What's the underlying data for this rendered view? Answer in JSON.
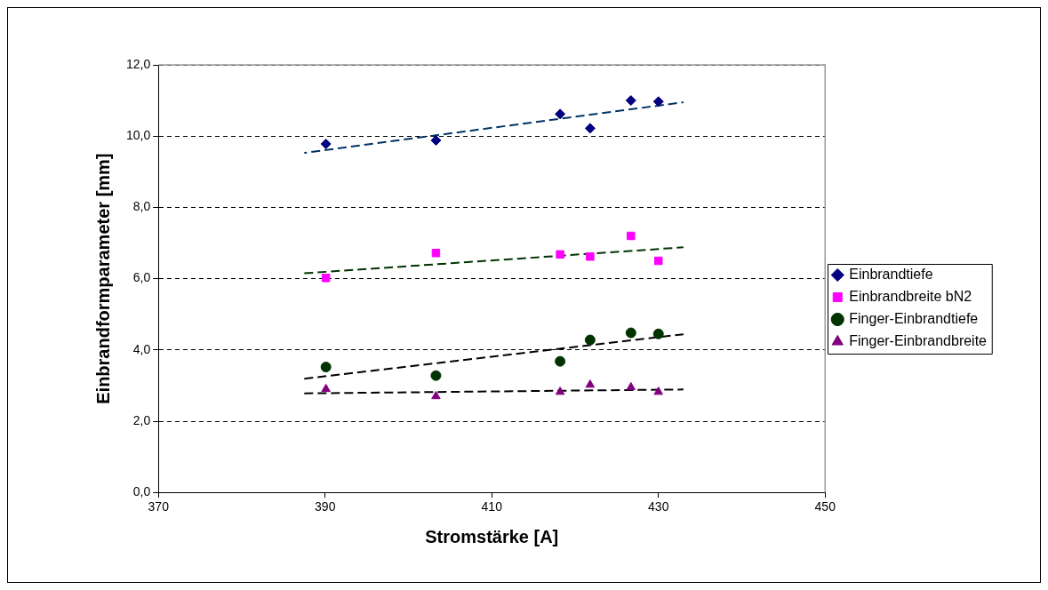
{
  "chart_data": {
    "type": "scatter",
    "xlabel": "Stromstärke [A]",
    "ylabel": "Einbrandformparameter [mm]",
    "xlim": [
      370,
      450
    ],
    "xticks": [
      370,
      390,
      410,
      430,
      450
    ],
    "ylim": [
      0,
      12
    ],
    "yticks": [
      {
        "value": 0,
        "label": "0,0"
      },
      {
        "value": 2,
        "label": "2,0"
      },
      {
        "value": 4,
        "label": "4,0"
      },
      {
        "value": 6,
        "label": "6,0"
      },
      {
        "value": 8,
        "label": "8,0"
      },
      {
        "value": 10,
        "label": "10,0"
      },
      {
        "value": 12,
        "label": "12,0"
      }
    ],
    "grid": "y",
    "legend": "right",
    "series": [
      {
        "name": "Einbrandtiefe",
        "color": "#000080",
        "marker": "diamond",
        "x": [
          390.1,
          403.3,
          418.2,
          421.8,
          426.7,
          430
        ],
        "values": [
          9.78,
          9.88,
          10.62,
          10.22,
          11.0,
          10.97
        ]
      },
      {
        "name": "Einbrandbreite bN2",
        "color": "#ff00ff",
        "marker": "square",
        "x": [
          390.1,
          403.3,
          418.2,
          421.8,
          426.7,
          430
        ],
        "values": [
          6.02,
          6.72,
          6.68,
          6.62,
          7.2,
          6.5
        ]
      },
      {
        "name": "Finger-Einbrandtiefe",
        "color": "#003300",
        "marker": "circle",
        "x": [
          390.1,
          403.3,
          418.2,
          421.8,
          426.7,
          430
        ],
        "values": [
          3.52,
          3.28,
          3.68,
          4.28,
          4.48,
          4.45
        ]
      },
      {
        "name": "Finger-Einbrandbreite",
        "color": "#800080",
        "marker": "triangle",
        "x": [
          390.1,
          403.3,
          418.2,
          421.8,
          426.7,
          430
        ],
        "values": [
          2.9,
          2.7,
          2.82,
          3.02,
          2.95,
          2.82
        ]
      },
      {
        "type": "line",
        "color": "#003366",
        "line_style": "dashed",
        "marker": "none",
        "x": [
          387.5,
          433
        ],
        "values": [
          9.53,
          10.95
        ]
      },
      {
        "type": "line",
        "color": "#003300",
        "line_style": "dashed",
        "marker": "none",
        "x": [
          387.5,
          433
        ],
        "values": [
          6.15,
          6.88
        ]
      },
      {
        "type": "line",
        "color": "#000000",
        "line_style": "dashed",
        "marker": "none",
        "x": [
          387.5,
          433
        ],
        "values": [
          3.19,
          4.44
        ]
      },
      {
        "type": "line",
        "color": "#000000",
        "line_style": "dashed",
        "marker": "none",
        "x": [
          387.5,
          433
        ],
        "values": [
          2.78,
          2.89
        ]
      }
    ]
  }
}
